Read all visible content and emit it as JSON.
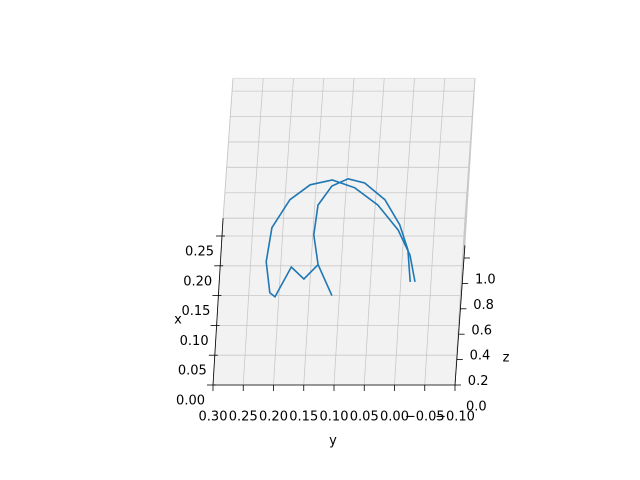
{
  "chart_data": {
    "type": "line3d",
    "xlabel": "x",
    "ylabel": "y",
    "zlabel": "z",
    "xlim": [
      0,
      0.28
    ],
    "ylim": [
      -0.1,
      0.3
    ],
    "zlim": [
      0,
      1.1
    ],
    "xticks": [
      {
        "value": 0,
        "label": "0.00"
      },
      {
        "value": 0.05,
        "label": "0.05"
      },
      {
        "value": 0.1,
        "label": "0.10"
      },
      {
        "value": 0.15,
        "label": "0.15"
      },
      {
        "value": 0.2,
        "label": "0.20"
      },
      {
        "value": 0.25,
        "label": "0.25"
      }
    ],
    "yticks": [
      {
        "value": 0.3,
        "label": "0.30"
      },
      {
        "value": 0.25,
        "label": "0.25"
      },
      {
        "value": 0.2,
        "label": "0.20"
      },
      {
        "value": 0.15,
        "label": "0.15"
      },
      {
        "value": 0.1,
        "label": "0.10"
      },
      {
        "value": 0.05,
        "label": "0.05"
      },
      {
        "value": 0,
        "label": "0.00"
      },
      {
        "value": -0.05,
        "label": "−0.05"
      },
      {
        "value": -0.1,
        "label": "−0.10"
      }
    ],
    "zticks": [
      {
        "value": 0,
        "label": "0.0"
      },
      {
        "value": 0.2,
        "label": "0.2"
      },
      {
        "value": 0.4,
        "label": "0.4"
      },
      {
        "value": 0.6,
        "label": "0.6"
      },
      {
        "value": 0.8,
        "label": "0.8"
      },
      {
        "value": 1,
        "label": "1.0"
      }
    ],
    "grid": true,
    "color": "#1f77b4",
    "x": [
      0.109,
      0.154,
      0.196,
      0.238,
      0.267,
      0.28,
      0.272,
      0.247,
      0.2,
      0.143,
      0.091,
      0.084,
      0.134,
      0.114,
      0.138,
      0.086,
      null,
      0.138,
      0.188,
      0.238,
      0.27,
      0.282,
      0.275,
      0.247,
      0.205,
      0.163,
      0.109
    ],
    "y": [
      -0.023,
      -0.012,
      0.01,
      0.046,
      0.086,
      0.124,
      0.16,
      0.192,
      0.219,
      0.225,
      0.216,
      0.207,
      0.183,
      0.161,
      0.139,
      0.113,
      null,
      0.139,
      0.149,
      0.145,
      0.124,
      0.098,
      0.07,
      0.035,
      0.008,
      -0.008,
      -0.015
    ],
    "z": [
      0.3,
      0.3,
      0.3,
      0.3,
      0.3,
      0.3,
      0.3,
      0.3,
      0.3,
      0.3,
      0.3,
      0.3,
      0.3,
      0.3,
      0.3,
      0.3,
      null,
      0.3,
      0.3,
      0.3,
      0.3,
      0.3,
      0.3,
      0.3,
      0.3,
      0.3,
      0.3
    ]
  }
}
